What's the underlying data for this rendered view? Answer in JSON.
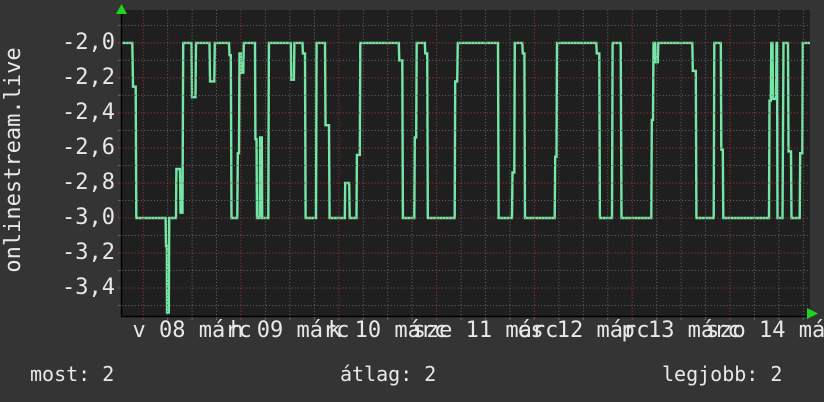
{
  "graph": {
    "vertical_label": "onlinestream.live",
    "colors": {
      "outer_bg": "#343434",
      "plot_bg": "#1f1f1f",
      "line": "#74e7a7",
      "grid_major": "#a33b35",
      "grid_minor": "#686868",
      "axis": "#000000",
      "arrow": "#1fd41f",
      "text": "#e8e8e8"
    }
  },
  "stats": {
    "most": "most: 2",
    "atlag": "átlag: 2",
    "legjobb": "legjobb: 2"
  },
  "chart_data": {
    "type": "line",
    "title": "",
    "ylabel": "onlinestream.live",
    "legend_stats": {
      "most": 2,
      "átlag": 2,
      "legjobb": 2
    },
    "grid": "dotted, red major / gray minor",
    "y_axis": {
      "ylim": [
        -3.56,
        -1.812
      ],
      "major_ticks": [
        {
          "value": -2.0,
          "label": "-2,0"
        },
        {
          "value": -2.2,
          "label": "-2,2"
        },
        {
          "value": -2.4,
          "label": "-2,4"
        },
        {
          "value": -2.6,
          "label": "-2,6"
        },
        {
          "value": -2.8,
          "label": "-2,8"
        },
        {
          "value": -3.0,
          "label": "-3,0"
        },
        {
          "value": -3.2,
          "label": "-3,2"
        },
        {
          "value": -3.4,
          "label": "-3,4"
        }
      ],
      "minor_ticks": [
        -1.9,
        -2.1,
        -2.3,
        -2.5,
        -2.7,
        -2.9,
        -3.1,
        -3.3,
        -3.5
      ]
    },
    "x_axis": {
      "unit": "percent of visible time axis (one week, 08–14 márc)",
      "day_labels": [
        {
          "text": "v 08 márc",
          "center_pct": 10.19
        },
        {
          "text": "h 09 márc",
          "center_pct": 24.4
        },
        {
          "text": "k 10 márc",
          "center_pct": 38.62
        },
        {
          "text": "sze 11 márc",
          "center_pct": 52.83
        },
        {
          "text": "cs 12 márc",
          "center_pct": 67.05
        },
        {
          "text": "p 13 márc",
          "center_pct": 81.26
        },
        {
          "text": "szo 14 márc",
          "center_pct": 95.48
        }
      ],
      "major_gridlines_pct": [
        3.08,
        17.3,
        31.51,
        45.73,
        59.94,
        74.16,
        88.37
      ],
      "minor_gridlines_pct": [
        6.63,
        10.19,
        13.74,
        20.85,
        24.4,
        27.96,
        35.07,
        38.62,
        42.17,
        49.28,
        52.83,
        56.39,
        63.5,
        67.05,
        70.6,
        77.71,
        81.26,
        84.82,
        91.93,
        95.48,
        99.03
      ]
    },
    "series": [
      {
        "name": "onlinestream.live",
        "color": "#74e7a7",
        "points": [
          [
            0.0,
            -2.0
          ],
          [
            1.5,
            -2.0
          ],
          [
            1.6,
            -2.25
          ],
          [
            1.99,
            -2.25
          ],
          [
            2.08,
            -3.0
          ],
          [
            6.34,
            -3.0
          ],
          [
            6.4,
            -3.16
          ],
          [
            6.51,
            -3.16
          ],
          [
            6.54,
            -3.54
          ],
          [
            6.8,
            -3.54
          ],
          [
            6.86,
            -3.0
          ],
          [
            7.85,
            -3.0
          ],
          [
            7.91,
            -2.72
          ],
          [
            8.43,
            -2.72
          ],
          [
            8.5,
            -2.97
          ],
          [
            8.79,
            -2.97
          ],
          [
            8.9,
            -2.0
          ],
          [
            10.1,
            -2.0
          ],
          [
            10.17,
            -2.31
          ],
          [
            10.68,
            -2.31
          ],
          [
            10.76,
            -2.0
          ],
          [
            12.72,
            -2.0
          ],
          [
            12.79,
            -2.22
          ],
          [
            13.42,
            -2.22
          ],
          [
            13.49,
            -2.0
          ],
          [
            15.55,
            -2.0
          ],
          [
            15.63,
            -2.07
          ],
          [
            15.81,
            -2.07
          ],
          [
            15.92,
            -3.0
          ],
          [
            16.76,
            -3.0
          ],
          [
            16.83,
            -2.63
          ],
          [
            17.01,
            -2.63
          ],
          [
            17.08,
            -2.06
          ],
          [
            17.27,
            -2.06
          ],
          [
            17.33,
            -2.17
          ],
          [
            17.63,
            -2.17
          ],
          [
            17.7,
            -2.0
          ],
          [
            19.33,
            -2.0
          ],
          [
            19.39,
            -2.55
          ],
          [
            19.55,
            -2.55
          ],
          [
            19.62,
            -3.0
          ],
          [
            20.01,
            -3.0
          ],
          [
            20.07,
            -2.54
          ],
          [
            20.32,
            -2.54
          ],
          [
            20.38,
            -3.0
          ],
          [
            21.26,
            -3.0
          ],
          [
            21.35,
            -2.0
          ],
          [
            24.53,
            -2.0
          ],
          [
            24.61,
            -2.21
          ],
          [
            24.99,
            -2.21
          ],
          [
            25.06,
            -2.0
          ],
          [
            26.24,
            -2.0
          ],
          [
            26.29,
            -2.06
          ],
          [
            26.6,
            -2.06
          ],
          [
            26.69,
            -3.0
          ],
          [
            28.2,
            -3.0
          ],
          [
            28.28,
            -2.0
          ],
          [
            29.51,
            -2.0
          ],
          [
            29.58,
            -2.47
          ],
          [
            30.09,
            -2.47
          ],
          [
            30.17,
            -3.0
          ],
          [
            32.38,
            -3.0
          ],
          [
            32.44,
            -2.8
          ],
          [
            33.02,
            -2.8
          ],
          [
            33.1,
            -3.0
          ],
          [
            34.08,
            -3.0
          ],
          [
            34.14,
            -2.64
          ],
          [
            34.56,
            -2.64
          ],
          [
            34.64,
            -2.0
          ],
          [
            40.23,
            -2.0
          ],
          [
            40.31,
            -2.1
          ],
          [
            40.74,
            -2.1
          ],
          [
            40.83,
            -3.0
          ],
          [
            42.49,
            -3.0
          ],
          [
            42.56,
            -2.54
          ],
          [
            42.76,
            -2.54
          ],
          [
            42.83,
            -2.0
          ],
          [
            44.01,
            -2.0
          ],
          [
            44.08,
            -2.06
          ],
          [
            44.36,
            -2.06
          ],
          [
            44.45,
            -3.0
          ],
          [
            48.36,
            -3.0
          ],
          [
            48.43,
            -2.22
          ],
          [
            48.72,
            -2.22
          ],
          [
            48.81,
            -2.0
          ],
          [
            54.65,
            -2.0
          ],
          [
            54.74,
            -3.0
          ],
          [
            56.69,
            -3.0
          ],
          [
            56.76,
            -2.74
          ],
          [
            57.02,
            -2.74
          ],
          [
            57.09,
            -2.0
          ],
          [
            58.18,
            -2.0
          ],
          [
            58.26,
            -2.06
          ],
          [
            58.49,
            -2.06
          ],
          [
            58.58,
            -3.0
          ],
          [
            62.89,
            -3.0
          ],
          [
            62.97,
            -2.65
          ],
          [
            63.15,
            -2.65
          ],
          [
            63.23,
            -2.0
          ],
          [
            68.94,
            -2.0
          ],
          [
            69.01,
            -2.06
          ],
          [
            69.38,
            -2.06
          ],
          [
            69.46,
            -3.0
          ],
          [
            71.22,
            -3.0
          ],
          [
            71.31,
            -2.0
          ],
          [
            72.49,
            -2.0
          ],
          [
            72.6,
            -3.0
          ],
          [
            76.93,
            -3.0
          ],
          [
            77.01,
            -2.44
          ],
          [
            77.18,
            -2.44
          ],
          [
            77.25,
            -2.0
          ],
          [
            77.5,
            -2.0
          ],
          [
            77.56,
            -2.11
          ],
          [
            77.88,
            -2.11
          ],
          [
            77.95,
            -2.0
          ],
          [
            82.89,
            -2.0
          ],
          [
            82.97,
            -2.16
          ],
          [
            83.4,
            -2.16
          ],
          [
            83.49,
            -3.0
          ],
          [
            86.0,
            -3.0
          ],
          [
            86.09,
            -2.0
          ],
          [
            87.03,
            -2.0
          ],
          [
            87.11,
            -2.61
          ],
          [
            87.33,
            -2.61
          ],
          [
            87.4,
            -3.0
          ],
          [
            94.04,
            -3.0
          ],
          [
            94.11,
            -2.33
          ],
          [
            94.3,
            -2.33
          ],
          [
            94.37,
            -2.0
          ],
          [
            94.55,
            -2.0
          ],
          [
            94.62,
            -2.32
          ],
          [
            95.06,
            -2.32
          ],
          [
            95.13,
            -2.0
          ],
          [
            95.2,
            -2.0
          ],
          [
            95.28,
            -3.0
          ],
          [
            96.0,
            -3.0
          ],
          [
            96.15,
            -2.0
          ],
          [
            96.8,
            -2.0
          ],
          [
            96.88,
            -2.62
          ],
          [
            97.24,
            -2.62
          ],
          [
            97.31,
            -3.0
          ],
          [
            98.5,
            -3.0
          ],
          [
            98.58,
            -2.63
          ],
          [
            98.88,
            -2.63
          ],
          [
            98.95,
            -2.0
          ],
          [
            100.0,
            -2.0
          ]
        ]
      }
    ]
  }
}
